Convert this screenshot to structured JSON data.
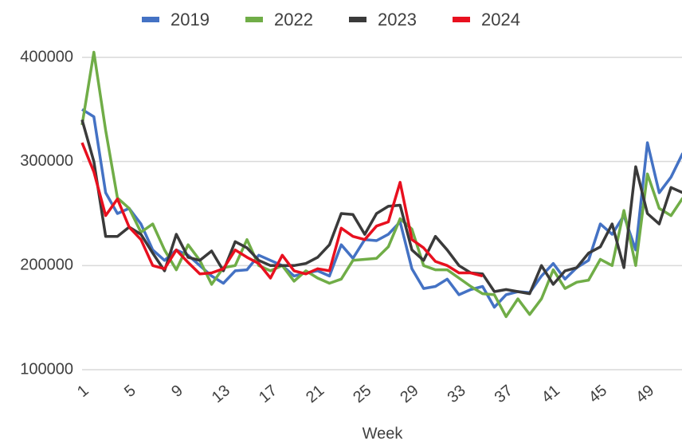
{
  "chart_data": {
    "type": "line",
    "x_label": "Week",
    "x": [
      1,
      2,
      3,
      4,
      5,
      6,
      7,
      8,
      9,
      10,
      11,
      12,
      13,
      14,
      15,
      16,
      17,
      18,
      19,
      20,
      21,
      22,
      23,
      24,
      25,
      26,
      27,
      28,
      29,
      30,
      31,
      32,
      33,
      34,
      35,
      36,
      37,
      38,
      39,
      40,
      41,
      42,
      43,
      44,
      45,
      46,
      47,
      48,
      49,
      50,
      51,
      52
    ],
    "xlim": [
      1,
      52
    ],
    "xticks": [
      1,
      5,
      9,
      13,
      17,
      21,
      25,
      29,
      33,
      37,
      41,
      45,
      49
    ],
    "ylim": [
      100000,
      400000
    ],
    "yticks": [
      100000,
      200000,
      300000,
      400000
    ],
    "grid": true,
    "legend": "top",
    "series": [
      {
        "name": "2019",
        "color": "#4472c4",
        "values": [
          350000,
          343000,
          270000,
          250000,
          255000,
          240000,
          215000,
          205000,
          215000,
          210000,
          200000,
          190000,
          183000,
          195000,
          196000,
          210000,
          205000,
          200000,
          190000,
          193000,
          195000,
          190000,
          220000,
          207000,
          225000,
          224000,
          230000,
          242000,
          197000,
          178000,
          180000,
          187000,
          172000,
          177000,
          180000,
          160000,
          172000,
          175000,
          174000,
          190000,
          202000,
          187000,
          198000,
          205000,
          240000,
          230000,
          248000,
          215000,
          318000,
          270000,
          285000,
          308000
        ]
      },
      {
        "name": "2022",
        "color": "#70ad47",
        "values": [
          335000,
          405000,
          330000,
          265000,
          255000,
          232000,
          240000,
          215000,
          196000,
          220000,
          205000,
          182000,
          198000,
          200000,
          225000,
          200000,
          195000,
          200000,
          185000,
          195000,
          188000,
          183000,
          187000,
          205000,
          206000,
          207000,
          218000,
          245000,
          235000,
          200000,
          196000,
          196000,
          188000,
          180000,
          173000,
          172000,
          151000,
          168000,
          153000,
          168000,
          196000,
          178000,
          184000,
          186000,
          206000,
          200000,
          253000,
          200000,
          288000,
          255000,
          248000,
          265000
        ]
      },
      {
        "name": "2023",
        "color": "#3a3a3a",
        "values": [
          340000,
          300000,
          228000,
          228000,
          237000,
          230000,
          212000,
          195000,
          230000,
          208000,
          205000,
          214000,
          195000,
          223000,
          217000,
          205000,
          200000,
          200000,
          200000,
          202000,
          208000,
          220000,
          250000,
          249000,
          230000,
          250000,
          257000,
          258000,
          215000,
          205000,
          228000,
          215000,
          200000,
          193000,
          192000,
          175000,
          177000,
          175000,
          173000,
          200000,
          182000,
          195000,
          198000,
          212000,
          218000,
          240000,
          198000,
          295000,
          250000,
          240000,
          275000,
          270000
        ]
      },
      {
        "name": "2024",
        "color": "#e8101f",
        "values": [
          318000,
          290000,
          248000,
          264000,
          237000,
          225000,
          200000,
          197000,
          215000,
          203000,
          192000,
          193000,
          197000,
          215000,
          208000,
          202000,
          188000,
          210000,
          195000,
          192000,
          197000,
          195000,
          236000,
          228000,
          225000,
          238000,
          242000,
          280000,
          225000,
          217000,
          204000,
          200000,
          193000,
          193000,
          190000,
          null,
          null,
          null,
          null,
          null,
          null,
          null,
          null,
          null,
          null,
          null,
          null,
          null,
          null,
          null,
          null,
          null
        ]
      }
    ]
  }
}
